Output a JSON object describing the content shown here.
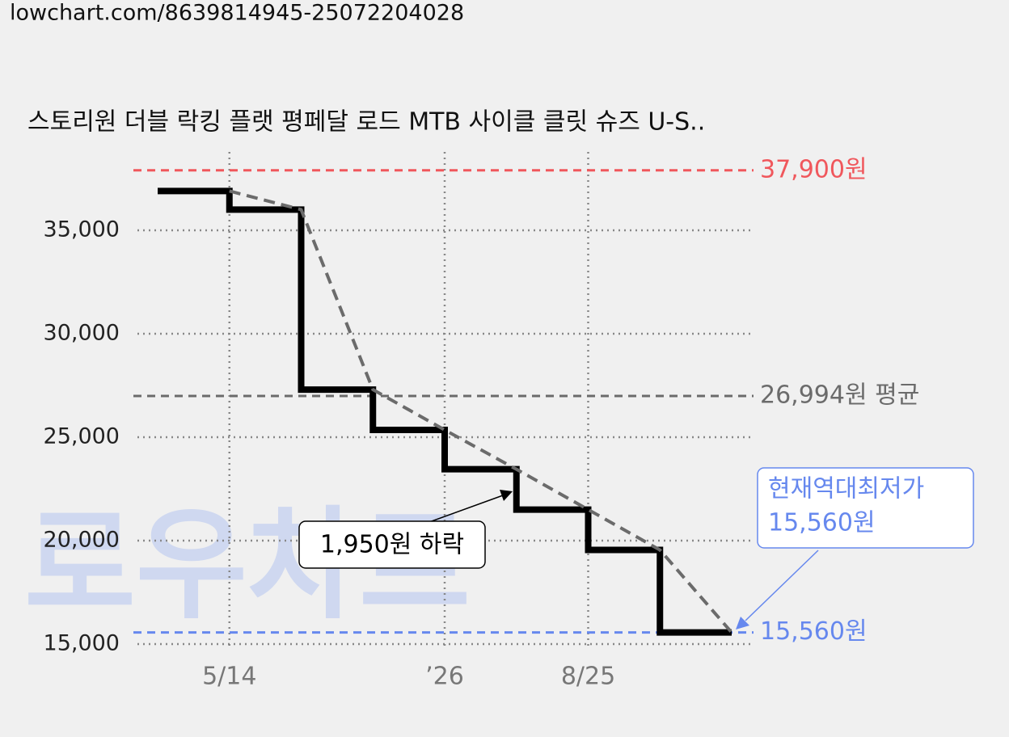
{
  "url": "lowchart.com/8639814945-25072204028",
  "watermark": "로우차트",
  "chart_data": {
    "type": "step",
    "title": "스토리원 더블 락킹 플랫 평페달 로드 MTB 사이클 클릿 슈즈 U-S..",
    "categories": [
      null,
      "5/14",
      null,
      null,
      "’26",
      null,
      "8/25",
      null,
      null
    ],
    "values": [
      36900,
      36000,
      27300,
      25350,
      23450,
      21500,
      19550,
      15560,
      15560
    ],
    "color": "#000000",
    "trend_color": "#6b6b6b",
    "ylim": [
      14800,
      38500
    ],
    "yticks": [
      {
        "value": 15000,
        "label": "15,000"
      },
      {
        "value": 20000,
        "label": "20,000"
      },
      {
        "value": 25000,
        "label": "25,000"
      },
      {
        "value": 30000,
        "label": "30,000"
      },
      {
        "value": 35000,
        "label": "35,000"
      }
    ],
    "grid": true,
    "reference_lines": [
      {
        "value": 37900,
        "label": "37,900원",
        "color": "#f0575c"
      },
      {
        "value": 26994,
        "label": "26,994원 평균",
        "color": "#6b6b6b"
      },
      {
        "value": 15560,
        "label": "15,560원",
        "color": "#6688ee"
      }
    ],
    "annotations": [
      {
        "text": "1,950원 하락"
      },
      {
        "lines": [
          "현재역대최저가",
          "15,560원"
        ]
      }
    ]
  }
}
